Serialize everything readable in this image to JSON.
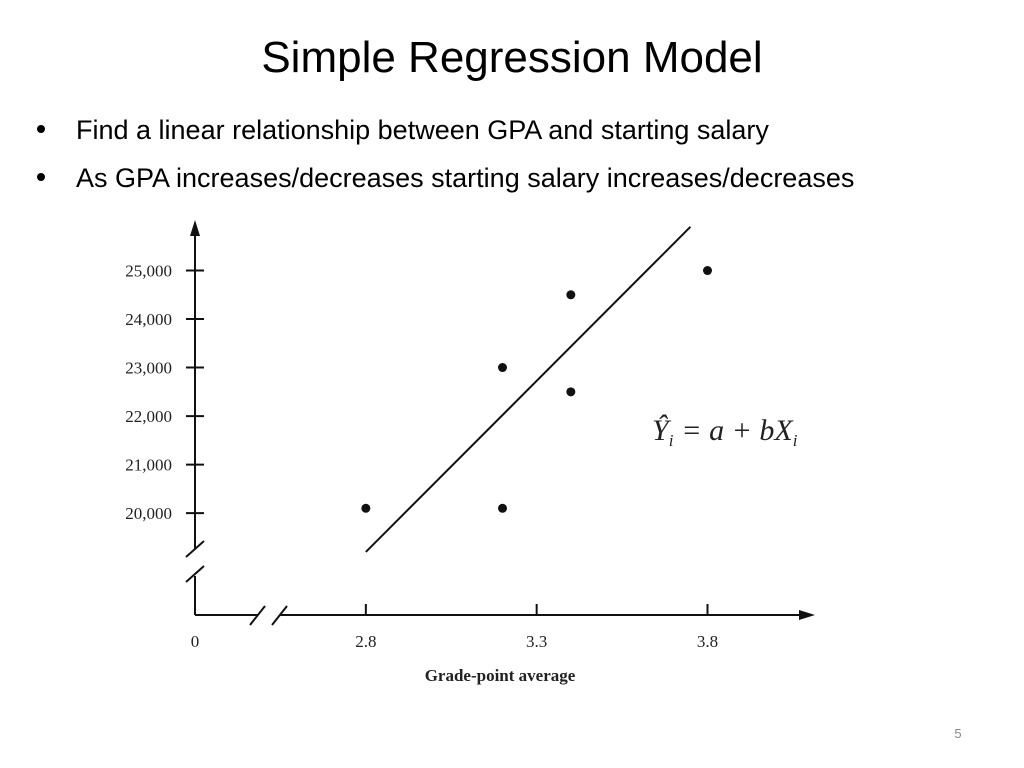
{
  "slide": {
    "title": "Simple Regression Model",
    "bullets": [
      "Find a linear relationship between GPA and starting salary",
      "As GPA increases/decreases starting salary increases/decreases"
    ],
    "page_number": "5"
  },
  "chart_data": {
    "type": "scatter",
    "xlabel": "Grade-point average",
    "x": [
      2.8,
      3.2,
      3.2,
      3.4,
      3.4,
      3.8
    ],
    "values": [
      20100,
      23000,
      20100,
      24500,
      22500,
      25000
    ],
    "color": "#111111",
    "trendline": {
      "x": [
        2.8,
        3.75
      ],
      "values": [
        19200,
        25900
      ]
    },
    "annotation": {
      "lhs": "Ŷ",
      "lhs_sub": "i",
      "rhs": "= a + bX",
      "rhs_sub": "i"
    },
    "x_origin": 0,
    "xlim": [
      2.3,
      4.1
    ],
    "xticks": [
      2.8,
      3.3,
      3.8
    ],
    "ylim": [
      17900,
      26000
    ],
    "yticks": [
      {
        "value": 20000,
        "label": "20,000"
      },
      {
        "value": 21000,
        "label": "21,000"
      },
      {
        "value": 22000,
        "label": "22,000"
      },
      {
        "value": 23000,
        "label": "23,000"
      },
      {
        "value": 24000,
        "label": "24,000"
      },
      {
        "value": 25000,
        "label": "25,000"
      }
    ]
  }
}
